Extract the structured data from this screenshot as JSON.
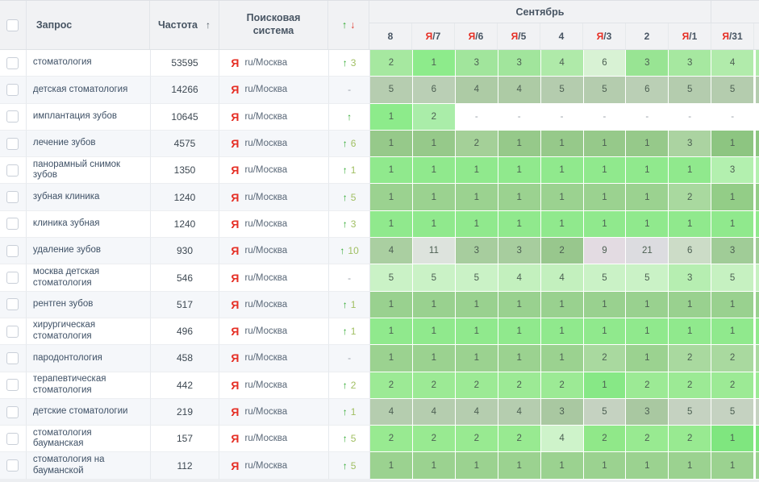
{
  "colors": {
    "yandex_red": "#e52e24",
    "arrow_green": "#2ea82e",
    "arrow_red": "#e03b2f",
    "change_value": "#a0bf62",
    "header_text": "#485563",
    "header_bg": "#f1f2f4",
    "row_alt_bg": "#f5f7fa"
  },
  "table": {
    "columns": {
      "query": "Запрос",
      "frequency": "Частота",
      "frequency_sort_icon": "↑",
      "search_engine": "Поисковая система",
      "change_up": "↑",
      "change_down": "↓"
    },
    "month_group": "Сентябрь",
    "date_columns": [
      {
        "prefix": "",
        "label": "8"
      },
      {
        "prefix": "Я",
        "label": "/7"
      },
      {
        "prefix": "Я",
        "label": "/6"
      },
      {
        "prefix": "Я",
        "label": "/5"
      },
      {
        "prefix": "",
        "label": "4"
      },
      {
        "prefix": "Я",
        "label": "/3"
      },
      {
        "prefix": "",
        "label": "2"
      },
      {
        "prefix": "Я",
        "label": "/1"
      },
      {
        "prefix": "Я",
        "label": "/31"
      }
    ],
    "rows": [
      {
        "query": "стоматология",
        "frequency": "53595",
        "engine_icon": "Я",
        "engine": "ru/Москва",
        "change": {
          "up": true,
          "value": "3"
        },
        "cells": [
          {
            "v": "2",
            "bg": "#a6e8a0"
          },
          {
            "v": "1",
            "bg": "#8deb8b"
          },
          {
            "v": "3",
            "bg": "#a1e59c"
          },
          {
            "v": "3",
            "bg": "#a1e59c"
          },
          {
            "v": "4",
            "bg": "#afeaa9"
          },
          {
            "v": "6",
            "bg": "#d8f2d4"
          },
          {
            "v": "3",
            "bg": "#98e493"
          },
          {
            "v": "3",
            "bg": "#a6e8a0"
          },
          {
            "v": "4",
            "bg": "#b1ebab"
          }
        ],
        "sliver_bg": "#b1ebab"
      },
      {
        "query": "детская стоматология",
        "frequency": "14266",
        "engine_icon": "Я",
        "engine": "ru/Москва",
        "change": {
          "up": false,
          "value": "-"
        },
        "cells": [
          {
            "v": "5",
            "bg": "#b6cdb0"
          },
          {
            "v": "6",
            "bg": "#bacfb5"
          },
          {
            "v": "4",
            "bg": "#adcba5"
          },
          {
            "v": "4",
            "bg": "#adcba5"
          },
          {
            "v": "5",
            "bg": "#b4ccae"
          },
          {
            "v": "5",
            "bg": "#b4ccae"
          },
          {
            "v": "6",
            "bg": "#bacfb5"
          },
          {
            "v": "5",
            "bg": "#b4ccae"
          },
          {
            "v": "5",
            "bg": "#b4ccae"
          }
        ],
        "sliver_bg": "#b4ccae"
      },
      {
        "query": "имплантация зубов",
        "frequency": "10645",
        "engine_icon": "Я",
        "engine": "ru/Москва",
        "change": {
          "up": true,
          "value": ""
        },
        "cells": [
          {
            "v": "1",
            "bg": "#8deb8b"
          },
          {
            "v": "2",
            "bg": "#aaeda9"
          },
          {
            "v": "-",
            "bg": "#ffffff"
          },
          {
            "v": "-",
            "bg": "#ffffff"
          },
          {
            "v": "-",
            "bg": "#ffffff"
          },
          {
            "v": "-",
            "bg": "#ffffff"
          },
          {
            "v": "-",
            "bg": "#ffffff"
          },
          {
            "v": "-",
            "bg": "#ffffff"
          },
          {
            "v": "-",
            "bg": "#ffffff"
          }
        ],
        "sliver_bg": "#ffffff"
      },
      {
        "query": "лечение зубов",
        "frequency": "4575",
        "engine_icon": "Я",
        "engine": "ru/Москва",
        "change": {
          "up": true,
          "value": "6"
        },
        "cells": [
          {
            "v": "1",
            "bg": "#96c98a"
          },
          {
            "v": "1",
            "bg": "#96c98a"
          },
          {
            "v": "2",
            "bg": "#a4d098"
          },
          {
            "v": "1",
            "bg": "#96c98a"
          },
          {
            "v": "1",
            "bg": "#96c98a"
          },
          {
            "v": "1",
            "bg": "#96c98a"
          },
          {
            "v": "1",
            "bg": "#96c98a"
          },
          {
            "v": "3",
            "bg": "#abd3a1"
          },
          {
            "v": "1",
            "bg": "#8dc581"
          }
        ],
        "sliver_bg": "#8dc581"
      },
      {
        "query": "панорамный снимок зубов",
        "frequency": "1350",
        "engine_icon": "Я",
        "engine": "ru/Москва",
        "change": {
          "up": true,
          "value": "1"
        },
        "cells": [
          {
            "v": "1",
            "bg": "#90e98d"
          },
          {
            "v": "1",
            "bg": "#90e98d"
          },
          {
            "v": "1",
            "bg": "#90e98d"
          },
          {
            "v": "1",
            "bg": "#90e98d"
          },
          {
            "v": "1",
            "bg": "#90e98d"
          },
          {
            "v": "1",
            "bg": "#90e98d"
          },
          {
            "v": "1",
            "bg": "#90e98d"
          },
          {
            "v": "1",
            "bg": "#90e98d"
          },
          {
            "v": "3",
            "bg": "#b3f0af"
          }
        ],
        "sliver_bg": "#b3f0af"
      },
      {
        "query": "зубная клиника",
        "frequency": "1240",
        "engine_icon": "Я",
        "engine": "ru/Москва",
        "change": {
          "up": true,
          "value": "5"
        },
        "cells": [
          {
            "v": "1",
            "bg": "#9bd290"
          },
          {
            "v": "1",
            "bg": "#9bd290"
          },
          {
            "v": "1",
            "bg": "#9bd290"
          },
          {
            "v": "1",
            "bg": "#9bd290"
          },
          {
            "v": "1",
            "bg": "#9bd290"
          },
          {
            "v": "1",
            "bg": "#9bd290"
          },
          {
            "v": "1",
            "bg": "#9bd290"
          },
          {
            "v": "2",
            "bg": "#a9d99f"
          },
          {
            "v": "1",
            "bg": "#93cd87"
          }
        ],
        "sliver_bg": "#93cd87"
      },
      {
        "query": "клиника зубная",
        "frequency": "1240",
        "engine_icon": "Я",
        "engine": "ru/Москва",
        "change": {
          "up": true,
          "value": "3"
        },
        "cells": [
          {
            "v": "1",
            "bg": "#90e98d"
          },
          {
            "v": "1",
            "bg": "#90e98d"
          },
          {
            "v": "1",
            "bg": "#90e98d"
          },
          {
            "v": "1",
            "bg": "#90e98d"
          },
          {
            "v": "1",
            "bg": "#90e98d"
          },
          {
            "v": "1",
            "bg": "#90e98d"
          },
          {
            "v": "1",
            "bg": "#90e98d"
          },
          {
            "v": "1",
            "bg": "#90e98d"
          },
          {
            "v": "1",
            "bg": "#90e98d"
          }
        ],
        "sliver_bg": "#90e98d"
      },
      {
        "query": "удаление зубов",
        "frequency": "930",
        "engine_icon": "Я",
        "engine": "ru/Москва",
        "change": {
          "up": true,
          "value": "10"
        },
        "cells": [
          {
            "v": "4",
            "bg": "#aacfa1"
          },
          {
            "v": "11",
            "bg": "#dde3dd"
          },
          {
            "v": "3",
            "bg": "#a7cd9e"
          },
          {
            "v": "3",
            "bg": "#a7cd9e"
          },
          {
            "v": "2",
            "bg": "#98c78d"
          },
          {
            "v": "9",
            "bg": "#e3dbe2"
          },
          {
            "v": "21",
            "bg": "#dcdce0"
          },
          {
            "v": "6",
            "bg": "#ccdcc7"
          },
          {
            "v": "3",
            "bg": "#a0cc97"
          }
        ],
        "sliver_bg": "#a0cc97"
      },
      {
        "query": "москва детская стоматология",
        "frequency": "546",
        "engine_icon": "Я",
        "engine": "ru/Москва",
        "change": {
          "up": false,
          "value": "-"
        },
        "cells": [
          {
            "v": "5",
            "bg": "#caf2c6"
          },
          {
            "v": "5",
            "bg": "#caf2c6"
          },
          {
            "v": "5",
            "bg": "#caf2c6"
          },
          {
            "v": "4",
            "bg": "#c3f0be"
          },
          {
            "v": "4",
            "bg": "#c3f0be"
          },
          {
            "v": "5",
            "bg": "#caf2c6"
          },
          {
            "v": "5",
            "bg": "#caf2c6"
          },
          {
            "v": "3",
            "bg": "#b6eeb1"
          },
          {
            "v": "5",
            "bg": "#c6f1c1"
          }
        ],
        "sliver_bg": "#c6f1c1"
      },
      {
        "query": "рентген зубов",
        "frequency": "517",
        "engine_icon": "Я",
        "engine": "ru/Москва",
        "change": {
          "up": true,
          "value": "1"
        },
        "cells": [
          {
            "v": "1",
            "bg": "#99d18f"
          },
          {
            "v": "1",
            "bg": "#99d18f"
          },
          {
            "v": "1",
            "bg": "#99d18f"
          },
          {
            "v": "1",
            "bg": "#99d18f"
          },
          {
            "v": "1",
            "bg": "#99d18f"
          },
          {
            "v": "1",
            "bg": "#99d18f"
          },
          {
            "v": "1",
            "bg": "#99d18f"
          },
          {
            "v": "1",
            "bg": "#99d18f"
          },
          {
            "v": "1",
            "bg": "#99d18f"
          }
        ],
        "sliver_bg": "#99d18f"
      },
      {
        "query": "хирургическая стоматология",
        "frequency": "496",
        "engine_icon": "Я",
        "engine": "ru/Москва",
        "change": {
          "up": true,
          "value": "1"
        },
        "cells": [
          {
            "v": "1",
            "bg": "#90e98d"
          },
          {
            "v": "1",
            "bg": "#90e98d"
          },
          {
            "v": "1",
            "bg": "#90e98d"
          },
          {
            "v": "1",
            "bg": "#90e98d"
          },
          {
            "v": "1",
            "bg": "#90e98d"
          },
          {
            "v": "1",
            "bg": "#90e98d"
          },
          {
            "v": "1",
            "bg": "#90e98d"
          },
          {
            "v": "1",
            "bg": "#90e98d"
          },
          {
            "v": "1",
            "bg": "#90e98d"
          }
        ],
        "sliver_bg": "#90e98d"
      },
      {
        "query": "пародонтология",
        "frequency": "458",
        "engine_icon": "Я",
        "engine": "ru/Москва",
        "change": {
          "up": false,
          "value": "-"
        },
        "cells": [
          {
            "v": "1",
            "bg": "#9bd290"
          },
          {
            "v": "1",
            "bg": "#9bd290"
          },
          {
            "v": "1",
            "bg": "#9bd290"
          },
          {
            "v": "1",
            "bg": "#9bd290"
          },
          {
            "v": "1",
            "bg": "#9bd290"
          },
          {
            "v": "2",
            "bg": "#a9d99f"
          },
          {
            "v": "1",
            "bg": "#9bd290"
          },
          {
            "v": "2",
            "bg": "#a9d99f"
          },
          {
            "v": "2",
            "bg": "#a9d99f"
          }
        ],
        "sliver_bg": "#a9d99f"
      },
      {
        "query": "терапевтическая стоматология",
        "frequency": "442",
        "engine_icon": "Я",
        "engine": "ru/Москва",
        "change": {
          "up": true,
          "value": "2"
        },
        "cells": [
          {
            "v": "2",
            "bg": "#9cea95"
          },
          {
            "v": "2",
            "bg": "#9cea95"
          },
          {
            "v": "2",
            "bg": "#9cea95"
          },
          {
            "v": "2",
            "bg": "#9cea95"
          },
          {
            "v": "2",
            "bg": "#9cea95"
          },
          {
            "v": "1",
            "bg": "#87e886"
          },
          {
            "v": "2",
            "bg": "#9cea95"
          },
          {
            "v": "2",
            "bg": "#9cea95"
          },
          {
            "v": "2",
            "bg": "#9cea95"
          }
        ],
        "sliver_bg": "#9cea95"
      },
      {
        "query": "детские стоматологии",
        "frequency": "219",
        "engine_icon": "Я",
        "engine": "ru/Москва",
        "change": {
          "up": true,
          "value": "1"
        },
        "cells": [
          {
            "v": "4",
            "bg": "#b5cdaf"
          },
          {
            "v": "4",
            "bg": "#b5cdaf"
          },
          {
            "v": "4",
            "bg": "#b5cdaf"
          },
          {
            "v": "4",
            "bg": "#b5cdaf"
          },
          {
            "v": "3",
            "bg": "#a9c8a1"
          },
          {
            "v": "5",
            "bg": "#c5d2c1"
          },
          {
            "v": "3",
            "bg": "#a9c8a1"
          },
          {
            "v": "5",
            "bg": "#c5d2c1"
          },
          {
            "v": "5",
            "bg": "#c5d2c1"
          }
        ],
        "sliver_bg": "#c5d2c1"
      },
      {
        "query": "стоматология бауманская",
        "frequency": "157",
        "engine_icon": "Я",
        "engine": "ru/Москва",
        "change": {
          "up": true,
          "value": "5"
        },
        "cells": [
          {
            "v": "2",
            "bg": "#98ea91"
          },
          {
            "v": "2",
            "bg": "#98ea91"
          },
          {
            "v": "2",
            "bg": "#98ea91"
          },
          {
            "v": "2",
            "bg": "#98ea91"
          },
          {
            "v": "4",
            "bg": "#cef3ca"
          },
          {
            "v": "2",
            "bg": "#90e889"
          },
          {
            "v": "2",
            "bg": "#98ea91"
          },
          {
            "v": "2",
            "bg": "#98ea91"
          },
          {
            "v": "1",
            "bg": "#7fe67f"
          }
        ],
        "sliver_bg": "#7fe67f"
      },
      {
        "query": "стоматология на бауманской",
        "frequency": "112",
        "engine_icon": "Я",
        "engine": "ru/Москва",
        "change": {
          "up": true,
          "value": "5"
        },
        "cells": [
          {
            "v": "1",
            "bg": "#9bd290"
          },
          {
            "v": "1",
            "bg": "#9bd290"
          },
          {
            "v": "1",
            "bg": "#9bd290"
          },
          {
            "v": "1",
            "bg": "#9bd290"
          },
          {
            "v": "1",
            "bg": "#9bd290"
          },
          {
            "v": "1",
            "bg": "#9bd290"
          },
          {
            "v": "1",
            "bg": "#9bd290"
          },
          {
            "v": "1",
            "bg": "#9bd290"
          },
          {
            "v": "1",
            "bg": "#9bd290"
          }
        ],
        "sliver_bg": "#9bd290"
      }
    ]
  }
}
